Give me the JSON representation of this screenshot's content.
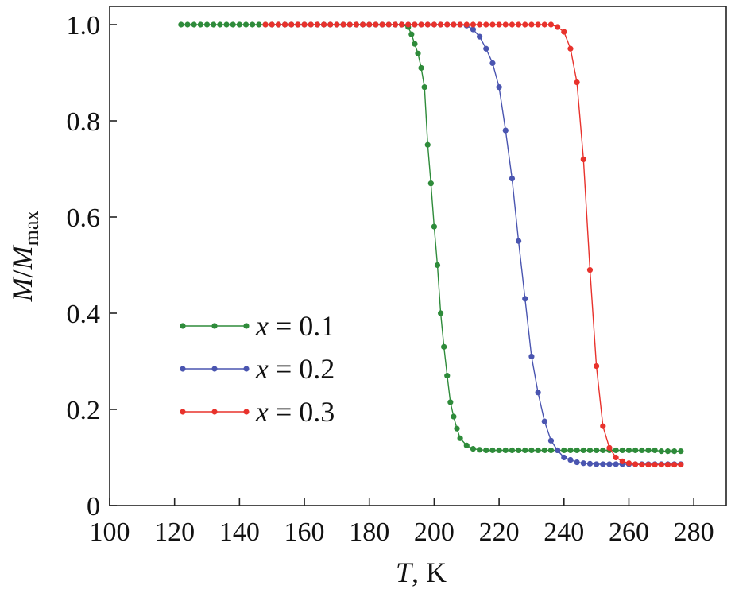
{
  "chart_data": {
    "type": "line",
    "title": "",
    "xlabel": {
      "var": "T",
      "unit": ", K"
    },
    "ylabel": {
      "var": "M",
      "slash": "/",
      "var2": "M",
      "sub": "max"
    },
    "xlim": [
      100,
      290
    ],
    "ylim": [
      0,
      1.0
    ],
    "xticks": [
      "100",
      "120",
      "140",
      "160",
      "180",
      "200",
      "220",
      "240",
      "260",
      "280"
    ],
    "yticks": [
      "0",
      "0.2",
      "0.4",
      "0.6",
      "0.8",
      "1.0"
    ],
    "xtick_values": [
      100,
      120,
      140,
      160,
      180,
      200,
      220,
      240,
      260,
      280
    ],
    "ytick_values": [
      0,
      0.2,
      0.4,
      0.6,
      0.8,
      1.0
    ],
    "grid": false,
    "legend_position": "lower-left",
    "series": [
      {
        "name": "x = 0.1",
        "legend": {
          "var": "x",
          "rest": " = 0.1"
        },
        "color": "#2e8b3a",
        "x": [
          122,
          124,
          126,
          128,
          130,
          132,
          134,
          136,
          138,
          140,
          142,
          144,
          146,
          148,
          150,
          152,
          154,
          156,
          158,
          160,
          162,
          164,
          166,
          168,
          170,
          172,
          174,
          176,
          178,
          180,
          182,
          184,
          186,
          188,
          190,
          192,
          193,
          194,
          195,
          196,
          197,
          198,
          199,
          200,
          201,
          202,
          203,
          204,
          205,
          206,
          207,
          208,
          210,
          212,
          214,
          216,
          218,
          220,
          222,
          224,
          226,
          228,
          230,
          232,
          234,
          236,
          238,
          240,
          242,
          244,
          246,
          248,
          250,
          252,
          254,
          256,
          258,
          260,
          262,
          264,
          266,
          268,
          270,
          272,
          274,
          276
        ],
        "y": [
          1.0,
          1.0,
          1.0,
          1.0,
          1.0,
          1.0,
          1.0,
          1.0,
          1.0,
          1.0,
          1.0,
          1.0,
          1.0,
          1.0,
          1.0,
          1.0,
          1.0,
          1.0,
          1.0,
          1.0,
          1.0,
          1.0,
          1.0,
          1.0,
          1.0,
          1.0,
          1.0,
          1.0,
          1.0,
          1.0,
          1.0,
          1.0,
          1.0,
          1.0,
          1.0,
          0.995,
          0.98,
          0.96,
          0.94,
          0.91,
          0.87,
          0.75,
          0.67,
          0.58,
          0.5,
          0.4,
          0.33,
          0.27,
          0.215,
          0.185,
          0.16,
          0.14,
          0.125,
          0.118,
          0.116,
          0.115,
          0.115,
          0.115,
          0.115,
          0.115,
          0.115,
          0.115,
          0.115,
          0.115,
          0.115,
          0.115,
          0.115,
          0.115,
          0.115,
          0.115,
          0.115,
          0.115,
          0.115,
          0.115,
          0.115,
          0.115,
          0.115,
          0.115,
          0.115,
          0.115,
          0.115,
          0.115,
          0.113,
          0.113,
          0.113,
          0.113
        ]
      },
      {
        "name": "x = 0.2",
        "legend": {
          "var": "x",
          "rest": " = 0.2"
        },
        "color": "#4a55b0",
        "x": [
          150,
          152,
          154,
          156,
          158,
          160,
          162,
          164,
          166,
          168,
          170,
          172,
          174,
          176,
          178,
          180,
          182,
          184,
          186,
          188,
          190,
          192,
          194,
          196,
          198,
          200,
          202,
          204,
          206,
          208,
          210,
          212,
          214,
          216,
          218,
          220,
          222,
          224,
          226,
          228,
          230,
          232,
          234,
          236,
          238,
          240,
          242,
          244,
          246,
          248,
          250,
          252,
          254,
          256,
          258,
          260,
          262,
          264,
          266,
          268,
          270,
          272,
          274,
          276
        ],
        "y": [
          1.0,
          1.0,
          1.0,
          1.0,
          1.0,
          1.0,
          1.0,
          1.0,
          1.0,
          1.0,
          1.0,
          1.0,
          1.0,
          1.0,
          1.0,
          1.0,
          1.0,
          1.0,
          1.0,
          1.0,
          1.0,
          1.0,
          1.0,
          1.0,
          1.0,
          1.0,
          1.0,
          1.0,
          1.0,
          1.0,
          0.998,
          0.99,
          0.975,
          0.95,
          0.92,
          0.87,
          0.78,
          0.68,
          0.55,
          0.43,
          0.31,
          0.235,
          0.175,
          0.135,
          0.115,
          0.1,
          0.095,
          0.09,
          0.088,
          0.087,
          0.086,
          0.086,
          0.086,
          0.086,
          0.086,
          0.086,
          0.086,
          0.086,
          0.086,
          0.086,
          0.086,
          0.086,
          0.086,
          0.086
        ]
      },
      {
        "name": "x = 0.3",
        "legend": {
          "var": "x",
          "rest": " = 0.3"
        },
        "color": "#e8322c",
        "x": [
          148,
          150,
          152,
          154,
          156,
          158,
          160,
          162,
          164,
          166,
          168,
          170,
          172,
          174,
          176,
          178,
          180,
          182,
          184,
          186,
          188,
          190,
          192,
          194,
          196,
          198,
          200,
          202,
          204,
          206,
          208,
          210,
          212,
          214,
          216,
          218,
          220,
          222,
          224,
          226,
          228,
          230,
          232,
          234,
          236,
          238,
          240,
          242,
          244,
          246,
          248,
          250,
          252,
          254,
          256,
          258,
          260,
          262,
          264,
          266,
          268,
          270,
          272,
          274,
          276
        ],
        "y": [
          1.0,
          1.0,
          1.0,
          1.0,
          1.0,
          1.0,
          1.0,
          1.0,
          1.0,
          1.0,
          1.0,
          1.0,
          1.0,
          1.0,
          1.0,
          1.0,
          1.0,
          1.0,
          1.0,
          1.0,
          1.0,
          1.0,
          1.0,
          1.0,
          1.0,
          1.0,
          1.0,
          1.0,
          1.0,
          1.0,
          1.0,
          1.0,
          1.0,
          1.0,
          1.0,
          1.0,
          1.0,
          1.0,
          1.0,
          1.0,
          1.0,
          1.0,
          1.0,
          1.0,
          1.0,
          0.995,
          0.985,
          0.95,
          0.88,
          0.72,
          0.49,
          0.29,
          0.165,
          0.12,
          0.1,
          0.092,
          0.088,
          0.086,
          0.085,
          0.085,
          0.085,
          0.085,
          0.085,
          0.085,
          0.085
        ]
      }
    ]
  }
}
